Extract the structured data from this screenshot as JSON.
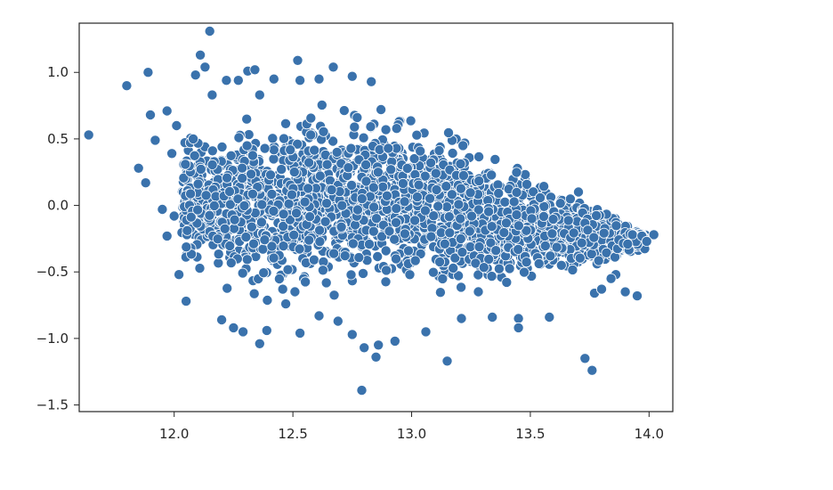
{
  "chart_data": {
    "type": "scatter",
    "title": "",
    "xlabel": "",
    "ylabel": "",
    "xlim": [
      11.6,
      14.1
    ],
    "ylim": [
      -1.55,
      1.37
    ],
    "xticks": [
      12.0,
      12.5,
      13.0,
      13.5,
      14.0
    ],
    "xtick_labels": [
      "12.0",
      "12.5",
      "13.0",
      "13.5",
      "14.0"
    ],
    "yticks": [
      -1.5,
      -1.0,
      -0.5,
      0.0,
      0.5,
      1.0
    ],
    "ytick_labels": [
      "−1.5",
      "−1.0",
      "−0.5",
      "0.0",
      "0.5",
      "1.0"
    ],
    "grid": false,
    "legend": false,
    "marker_color": "#3a72ac",
    "marker_edge_color": "#ffffff",
    "points": [
      [
        11.64,
        0.53
      ],
      [
        11.8,
        0.9
      ],
      [
        11.89,
        1.0
      ],
      [
        11.9,
        0.68
      ],
      [
        11.85,
        0.28
      ],
      [
        11.88,
        0.17
      ],
      [
        11.92,
        0.49
      ],
      [
        11.97,
        0.71
      ],
      [
        11.99,
        0.39
      ],
      [
        12.01,
        0.6
      ],
      [
        11.95,
        -0.03
      ],
      [
        11.97,
        -0.23
      ],
      [
        12.0,
        -0.08
      ],
      [
        12.02,
        -0.52
      ],
      [
        12.05,
        -0.72
      ],
      [
        12.08,
        0.5
      ],
      [
        12.09,
        0.98
      ],
      [
        12.11,
        1.13
      ],
      [
        12.13,
        1.04
      ],
      [
        12.15,
        1.31
      ],
      [
        12.16,
        0.83
      ],
      [
        12.22,
        0.94
      ],
      [
        12.27,
        0.94
      ],
      [
        12.31,
        1.01
      ],
      [
        12.34,
        1.02
      ],
      [
        12.36,
        0.83
      ],
      [
        12.42,
        0.95
      ],
      [
        12.52,
        1.09
      ],
      [
        12.53,
        0.94
      ],
      [
        12.61,
        0.95
      ],
      [
        12.67,
        1.04
      ],
      [
        12.75,
        0.97
      ],
      [
        12.83,
        0.93
      ],
      [
        12.2,
        -0.86
      ],
      [
        12.25,
        -0.92
      ],
      [
        12.29,
        -0.95
      ],
      [
        12.36,
        -1.04
      ],
      [
        12.39,
        -0.94
      ],
      [
        12.47,
        -0.74
      ],
      [
        12.53,
        -0.96
      ],
      [
        12.61,
        -0.83
      ],
      [
        12.69,
        -0.87
      ],
      [
        12.75,
        -0.97
      ],
      [
        12.8,
        -1.07
      ],
      [
        12.79,
        -1.39
      ],
      [
        12.85,
        -1.14
      ],
      [
        12.86,
        -1.05
      ],
      [
        12.93,
        -1.02
      ],
      [
        13.06,
        -0.95
      ],
      [
        13.15,
        -1.17
      ],
      [
        13.21,
        -0.85
      ],
      [
        13.34,
        -0.84
      ],
      [
        13.45,
        -0.85
      ],
      [
        13.45,
        -0.92
      ],
      [
        13.58,
        -0.84
      ],
      [
        13.73,
        -1.15
      ],
      [
        13.76,
        -1.24
      ],
      [
        13.77,
        -0.66
      ],
      [
        13.8,
        -0.63
      ],
      [
        13.9,
        -0.65
      ],
      [
        13.95,
        -0.68
      ],
      [
        13.93,
        -0.22
      ],
      [
        13.97,
        -0.23
      ],
      [
        14.02,
        -0.22
      ],
      [
        13.99,
        -0.27
      ],
      [
        13.91,
        -0.29
      ],
      [
        13.86,
        -0.52
      ],
      [
        13.84,
        -0.55
      ]
    ],
    "density_bounds": {
      "x_min": 12.03,
      "x_max": 13.98,
      "top": [
        [
          12.03,
          0.62
        ],
        [
          12.3,
          0.72
        ],
        [
          12.55,
          0.82
        ],
        [
          12.85,
          0.87
        ],
        [
          13.0,
          0.76
        ],
        [
          13.25,
          0.55
        ],
        [
          13.5,
          0.32
        ],
        [
          13.75,
          0.08
        ],
        [
          13.98,
          -0.18
        ]
      ],
      "bottom": [
        [
          12.03,
          -0.45
        ],
        [
          12.2,
          -0.72
        ],
        [
          12.5,
          -0.76
        ],
        [
          12.8,
          -0.73
        ],
        [
          13.1,
          -0.7
        ],
        [
          13.4,
          -0.68
        ],
        [
          13.7,
          -0.56
        ],
        [
          13.98,
          -0.36
        ]
      ]
    }
  }
}
